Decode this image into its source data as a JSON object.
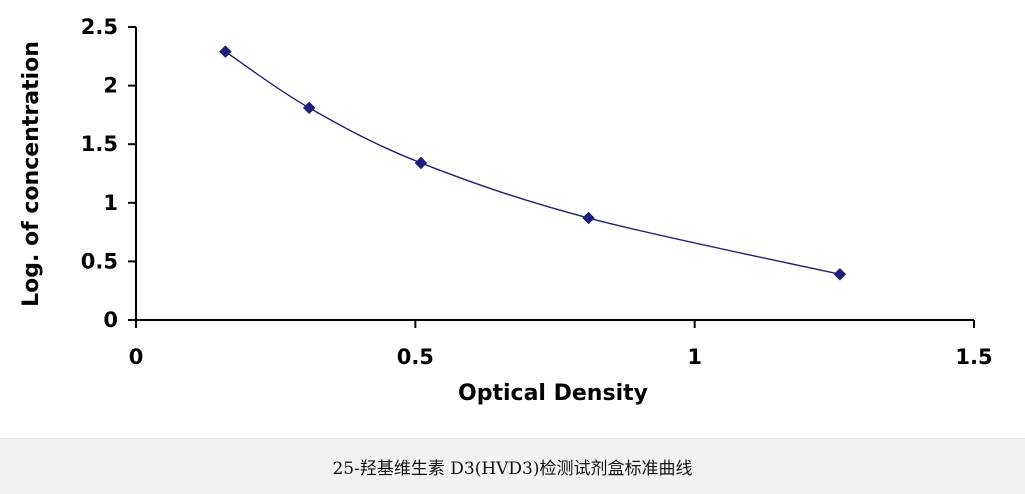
{
  "chart_data": {
    "type": "scatter",
    "title": "",
    "xlabel": "Optical Density",
    "ylabel": "Log. of concentration",
    "xlim": [
      0,
      1.5
    ],
    "ylim": [
      0,
      2.5
    ],
    "x_ticks": [
      "0",
      "0.5",
      "1",
      "1.5"
    ],
    "y_ticks": [
      "0",
      "0.5",
      "1",
      "1.5",
      "2",
      "2.5"
    ],
    "grid": false,
    "legend": "none",
    "trendline": "smooth curve through points",
    "series": [
      {
        "x": [
          0.16,
          0.31,
          0.51,
          0.81,
          1.26
        ],
        "y": [
          2.29,
          1.81,
          1.34,
          0.87,
          0.39
        ],
        "color": "#1f1f7a"
      }
    ]
  },
  "caption": "25-羟基维生素 D3(HVD3)检测试剂盒标准曲线"
}
